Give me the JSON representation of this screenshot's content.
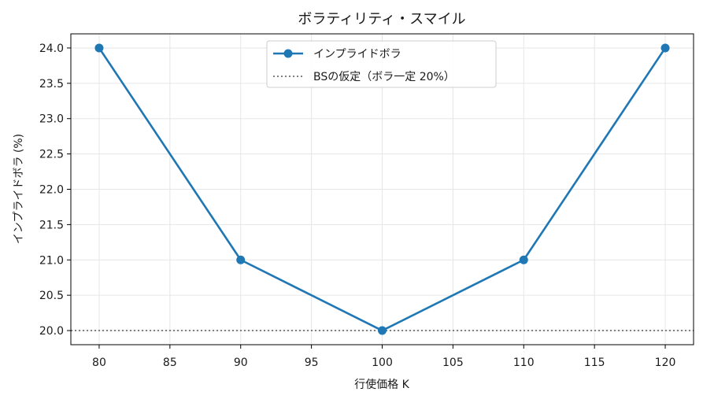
{
  "chart_data": {
    "type": "line",
    "title": "ボラティリティ・スマイル",
    "xlabel": "行使価格 K",
    "ylabel": "インプライドボラ (%)",
    "x": [
      80,
      90,
      100,
      110,
      120
    ],
    "series": [
      {
        "name": "インプライドボラ",
        "values": [
          24.0,
          21.0,
          20.0,
          21.0,
          24.0
        ],
        "color": "#1f77b4",
        "style": "solid",
        "marker": "circle"
      }
    ],
    "reference_lines": [
      {
        "name": "BSの仮定（ボラ一定 20%）",
        "y": 20.0,
        "color": "#808080",
        "style": "dotted"
      }
    ],
    "xlim": [
      78,
      122
    ],
    "ylim": [
      19.8,
      24.2
    ],
    "xticks": [
      80,
      85,
      90,
      95,
      100,
      105,
      110,
      115,
      120
    ],
    "yticks": [
      20.0,
      20.5,
      21.0,
      21.5,
      22.0,
      22.5,
      23.0,
      23.5,
      24.0
    ],
    "grid": true,
    "legend_position": "top-center"
  }
}
